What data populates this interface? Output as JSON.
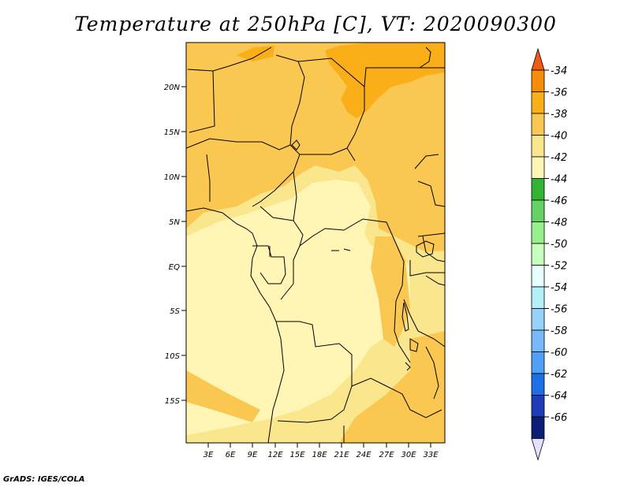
{
  "title": "Temperature at 250hPa [C], VT: 2020090300",
  "footer": "GrADS: IGES/COLA",
  "lat_labels": [
    "20N",
    "15N",
    "10N",
    "5N",
    "EQ",
    "5S",
    "10S",
    "15S"
  ],
  "lon_labels": [
    "3E",
    "6E",
    "9E",
    "12E",
    "15E",
    "18E",
    "21E",
    "24E",
    "27E",
    "30E",
    "33E"
  ],
  "legend": {
    "labels": [
      "-34",
      "-36",
      "-38",
      "-40",
      "-42",
      "-44",
      "-46",
      "-48",
      "-50",
      "-52",
      "-54",
      "-56",
      "-58",
      "-60",
      "-62",
      "-64",
      "-66"
    ],
    "colors": [
      "#f05a14",
      "#f58c0a",
      "#faaf19",
      "#fac850",
      "#fae68c",
      "#fff5b4",
      "#32b432",
      "#64d264",
      "#96f08c",
      "#c8ffbe",
      "#e6ffff",
      "#b4f0fa",
      "#96d2fa",
      "#78b9fa",
      "#50a0f5",
      "#1e6ee6",
      "#1e3cb4",
      "#0a1e78",
      "#e1e1ff"
    ]
  },
  "colors": {
    "warm": "#fac850",
    "mid": "#fae68c",
    "pale": "#fff5b4",
    "hot": "#faaf19"
  }
}
